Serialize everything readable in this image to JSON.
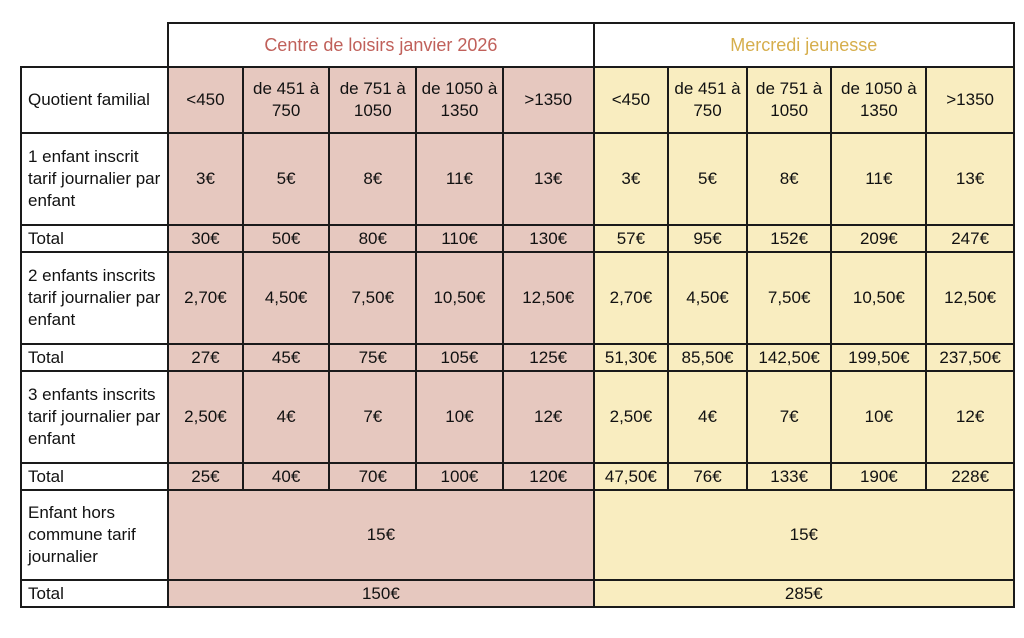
{
  "sections": {
    "centre_loisirs": "Centre de loisirs janvier 2026",
    "mercredi_jeunesse": "Mercredi jeunesse"
  },
  "columns": [
    "<450",
    "de 451 à 750",
    "de 751 à 1050",
    "de 1050 à 1350",
    ">1350"
  ],
  "columns_mj": [
    "<450",
    "de 451 à 750",
    "de 751 à 1050",
    "de 1050 à 1350",
    ">1350"
  ],
  "rows": {
    "qf_label": "Quotient familial",
    "r1": {
      "label": "1 enfant inscrit tarif journalier par enfant",
      "cl": [
        "3€",
        "5€",
        "8€",
        "11€",
        "13€"
      ],
      "mj": [
        "3€",
        "5€",
        "8€",
        "11€",
        "13€"
      ]
    },
    "t1": {
      "label": "Total",
      "cl": [
        "30€",
        "50€",
        "80€",
        "110€",
        "130€"
      ],
      "mj": [
        "57€",
        "95€",
        "152€",
        "209€",
        "247€"
      ]
    },
    "r2": {
      "label": "2 enfants inscrits tarif journalier par enfant",
      "cl": [
        "2,70€",
        "4,50€",
        "7,50€",
        "10,50€",
        "12,50€"
      ],
      "mj": [
        "2,70€",
        "4,50€",
        "7,50€",
        "10,50€",
        "12,50€"
      ]
    },
    "t2": {
      "label": "Total",
      "cl": [
        "27€",
        "45€",
        "75€",
        "105€",
        "125€"
      ],
      "mj": [
        "51,30€",
        "85,50€",
        "142,50€",
        "199,50€",
        "237,50€"
      ]
    },
    "r3": {
      "label": "3 enfants inscrits tarif journalier par enfant",
      "cl": [
        "2,50€",
        "4€",
        "7€",
        "10€",
        "12€"
      ],
      "mj": [
        "2,50€",
        "4€",
        "7€",
        "10€",
        "12€"
      ]
    },
    "t3": {
      "label": "Total",
      "cl": [
        "25€",
        "40€",
        "70€",
        "100€",
        "120€"
      ],
      "mj": [
        "47,50€",
        "76€",
        "133€",
        "190€",
        "228€"
      ]
    },
    "hc": {
      "label": "Enfant hors commune tarif journalier",
      "cl": "15€",
      "mj": "15€"
    },
    "thc": {
      "label": "Total",
      "cl": "150€",
      "mj": "285€"
    }
  },
  "colors": {
    "centre_loisirs_bg": "#e6c8bf",
    "mercredi_bg": "#f9edc0",
    "centre_loisirs_title": "#c0605a",
    "mercredi_title": "#d6ae4c"
  }
}
